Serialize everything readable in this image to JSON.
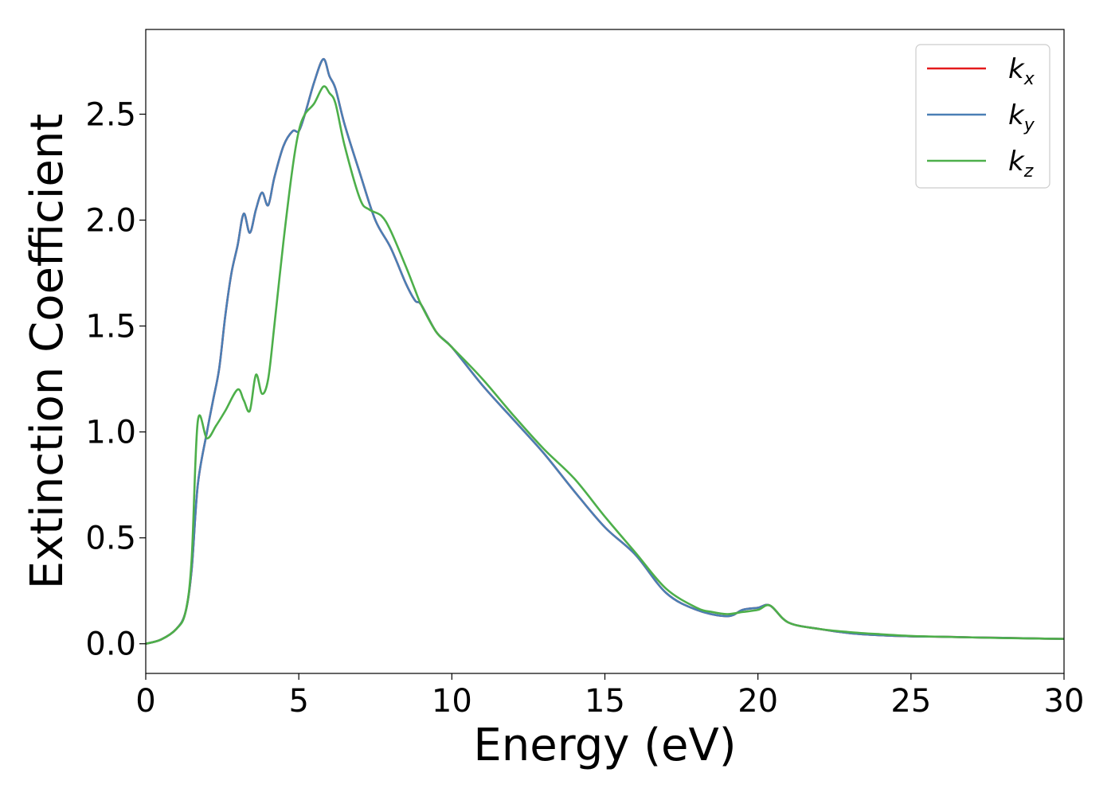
{
  "chart_data": {
    "type": "line",
    "title": "",
    "xlabel": "Energy (eV)",
    "ylabel": "Extinction Coefficient",
    "xlim": [
      0,
      30
    ],
    "ylim": [
      -0.14,
      2.9
    ],
    "grid": false,
    "legend_position": "top-right",
    "x_ticks": [
      "0",
      "5",
      "10",
      "15",
      "20",
      "25",
      "30"
    ],
    "y_ticks": [
      "0.0",
      "0.5",
      "1.0",
      "1.5",
      "2.0",
      "2.5"
    ],
    "series": [
      {
        "name": "kx",
        "label_main": "k",
        "label_sub": "x",
        "color": "#e41a1c",
        "points": [
          [
            0,
            0
          ],
          [
            0.5,
            0.02
          ],
          [
            1.0,
            0.07
          ],
          [
            1.3,
            0.15
          ],
          [
            1.5,
            0.35
          ],
          [
            1.7,
            0.75
          ],
          [
            2.0,
            1.0
          ],
          [
            2.2,
            1.15
          ],
          [
            2.4,
            1.3
          ],
          [
            2.6,
            1.55
          ],
          [
            2.8,
            1.75
          ],
          [
            3.0,
            1.88
          ],
          [
            3.2,
            2.03
          ],
          [
            3.4,
            1.94
          ],
          [
            3.6,
            2.05
          ],
          [
            3.8,
            2.13
          ],
          [
            4.0,
            2.07
          ],
          [
            4.2,
            2.2
          ],
          [
            4.5,
            2.35
          ],
          [
            4.8,
            2.42
          ],
          [
            5.0,
            2.42
          ],
          [
            5.2,
            2.5
          ],
          [
            5.5,
            2.65
          ],
          [
            5.8,
            2.76
          ],
          [
            6.0,
            2.68
          ],
          [
            6.2,
            2.62
          ],
          [
            6.5,
            2.45
          ],
          [
            7.0,
            2.22
          ],
          [
            7.5,
            2.0
          ],
          [
            8.0,
            1.87
          ],
          [
            8.5,
            1.7
          ],
          [
            8.8,
            1.62
          ],
          [
            9.0,
            1.6
          ],
          [
            9.5,
            1.47
          ],
          [
            10.0,
            1.4
          ],
          [
            11.0,
            1.22
          ],
          [
            12.0,
            1.06
          ],
          [
            13.0,
            0.9
          ],
          [
            14.0,
            0.72
          ],
          [
            15.0,
            0.55
          ],
          [
            16.0,
            0.42
          ],
          [
            17.0,
            0.24
          ],
          [
            18.0,
            0.16
          ],
          [
            19.0,
            0.13
          ],
          [
            19.5,
            0.16
          ],
          [
            20.0,
            0.17
          ],
          [
            20.4,
            0.18
          ],
          [
            21.0,
            0.1
          ],
          [
            22.0,
            0.07
          ],
          [
            23.0,
            0.05
          ],
          [
            24.0,
            0.04
          ],
          [
            25.0,
            0.035
          ],
          [
            26.0,
            0.033
          ],
          [
            27.0,
            0.03
          ],
          [
            28.0,
            0.028
          ],
          [
            29.0,
            0.025
          ],
          [
            30.0,
            0.023
          ]
        ]
      },
      {
        "name": "ky",
        "label_main": "k",
        "label_sub": "y",
        "color": "#4a7fb5",
        "points": [
          [
            0,
            0
          ],
          [
            0.5,
            0.02
          ],
          [
            1.0,
            0.07
          ],
          [
            1.3,
            0.15
          ],
          [
            1.5,
            0.35
          ],
          [
            1.7,
            0.75
          ],
          [
            2.0,
            1.0
          ],
          [
            2.2,
            1.15
          ],
          [
            2.4,
            1.3
          ],
          [
            2.6,
            1.55
          ],
          [
            2.8,
            1.75
          ],
          [
            3.0,
            1.88
          ],
          [
            3.2,
            2.03
          ],
          [
            3.4,
            1.94
          ],
          [
            3.6,
            2.05
          ],
          [
            3.8,
            2.13
          ],
          [
            4.0,
            2.07
          ],
          [
            4.2,
            2.2
          ],
          [
            4.5,
            2.35
          ],
          [
            4.8,
            2.42
          ],
          [
            5.0,
            2.42
          ],
          [
            5.2,
            2.5
          ],
          [
            5.5,
            2.65
          ],
          [
            5.8,
            2.76
          ],
          [
            6.0,
            2.68
          ],
          [
            6.2,
            2.62
          ],
          [
            6.5,
            2.45
          ],
          [
            7.0,
            2.22
          ],
          [
            7.5,
            2.0
          ],
          [
            8.0,
            1.87
          ],
          [
            8.5,
            1.7
          ],
          [
            8.8,
            1.62
          ],
          [
            9.0,
            1.6
          ],
          [
            9.5,
            1.47
          ],
          [
            10.0,
            1.4
          ],
          [
            11.0,
            1.22
          ],
          [
            12.0,
            1.06
          ],
          [
            13.0,
            0.9
          ],
          [
            14.0,
            0.72
          ],
          [
            15.0,
            0.55
          ],
          [
            16.0,
            0.42
          ],
          [
            17.0,
            0.24
          ],
          [
            18.0,
            0.16
          ],
          [
            19.0,
            0.13
          ],
          [
            19.5,
            0.16
          ],
          [
            20.0,
            0.17
          ],
          [
            20.4,
            0.18
          ],
          [
            21.0,
            0.1
          ],
          [
            22.0,
            0.07
          ],
          [
            23.0,
            0.05
          ],
          [
            24.0,
            0.04
          ],
          [
            25.0,
            0.035
          ],
          [
            26.0,
            0.033
          ],
          [
            27.0,
            0.03
          ],
          [
            28.0,
            0.028
          ],
          [
            29.0,
            0.025
          ],
          [
            30.0,
            0.023
          ]
        ]
      },
      {
        "name": "kz",
        "label_main": "k",
        "label_sub": "z",
        "color": "#4daf4a",
        "points": [
          [
            0,
            0
          ],
          [
            0.5,
            0.02
          ],
          [
            1.0,
            0.07
          ],
          [
            1.3,
            0.15
          ],
          [
            1.5,
            0.4
          ],
          [
            1.7,
            1.05
          ],
          [
            2.0,
            0.97
          ],
          [
            2.3,
            1.03
          ],
          [
            2.6,
            1.1
          ],
          [
            3.0,
            1.2
          ],
          [
            3.2,
            1.15
          ],
          [
            3.4,
            1.1
          ],
          [
            3.6,
            1.27
          ],
          [
            3.8,
            1.18
          ],
          [
            4.0,
            1.25
          ],
          [
            4.2,
            1.5
          ],
          [
            4.5,
            1.9
          ],
          [
            4.8,
            2.25
          ],
          [
            5.0,
            2.42
          ],
          [
            5.2,
            2.5
          ],
          [
            5.5,
            2.55
          ],
          [
            5.8,
            2.63
          ],
          [
            6.0,
            2.6
          ],
          [
            6.2,
            2.55
          ],
          [
            6.5,
            2.35
          ],
          [
            7.0,
            2.1
          ],
          [
            7.3,
            2.05
          ],
          [
            7.7,
            2.02
          ],
          [
            8.0,
            1.95
          ],
          [
            8.5,
            1.78
          ],
          [
            8.8,
            1.67
          ],
          [
            9.0,
            1.6
          ],
          [
            9.5,
            1.47
          ],
          [
            10.0,
            1.4
          ],
          [
            11.0,
            1.25
          ],
          [
            12.0,
            1.08
          ],
          [
            13.0,
            0.92
          ],
          [
            14.0,
            0.78
          ],
          [
            15.0,
            0.6
          ],
          [
            16.0,
            0.43
          ],
          [
            17.0,
            0.26
          ],
          [
            18.0,
            0.17
          ],
          [
            18.5,
            0.15
          ],
          [
            19.0,
            0.14
          ],
          [
            19.5,
            0.15
          ],
          [
            20.0,
            0.16
          ],
          [
            20.4,
            0.18
          ],
          [
            21.0,
            0.1
          ],
          [
            22.0,
            0.07
          ],
          [
            23.0,
            0.055
          ],
          [
            24.0,
            0.045
          ],
          [
            25.0,
            0.037
          ],
          [
            26.0,
            0.033
          ],
          [
            27.0,
            0.03
          ],
          [
            28.0,
            0.027
          ],
          [
            29.0,
            0.025
          ],
          [
            30.0,
            0.023
          ]
        ]
      }
    ]
  }
}
